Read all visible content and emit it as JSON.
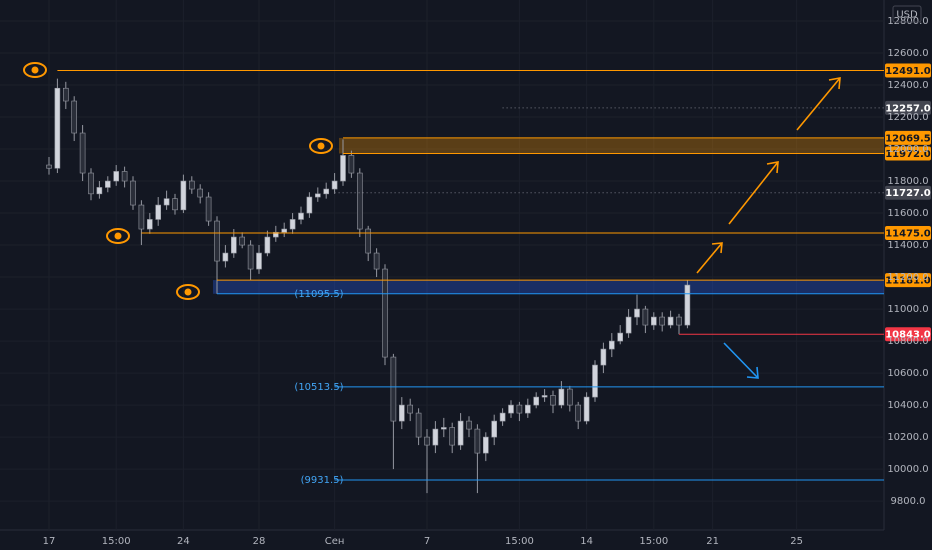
{
  "chart_data": {
    "type": "candlestick",
    "currency": "USD",
    "categories": [
      "17",
      null,
      null,
      null,
      null,
      null,
      null,
      null,
      "15:00",
      null,
      null,
      null,
      null,
      null,
      null,
      null,
      "24",
      null,
      null,
      null,
      null,
      null,
      null,
      null,
      null,
      "28",
      null,
      null,
      null,
      null,
      null,
      null,
      null,
      null,
      "Сен",
      null,
      null,
      null,
      null,
      null,
      null,
      null,
      null,
      null,
      null,
      "7",
      null,
      null,
      null,
      null,
      null,
      null,
      null,
      null,
      null,
      null,
      "15:00",
      null,
      null,
      null,
      null,
      null,
      null,
      null,
      "14",
      null,
      null,
      null,
      null,
      null,
      null,
      null,
      "15:00",
      null,
      null,
      null,
      null,
      null,
      null,
      "21",
      null,
      null,
      null,
      null,
      null,
      null,
      null,
      null,
      null,
      "25"
    ],
    "open": [
      11900,
      11880,
      12380,
      12300,
      12100,
      11850,
      11720,
      11760,
      11800,
      11860,
      11800,
      11650,
      11500,
      11560,
      11650,
      11690,
      11620,
      11800,
      11750,
      11700,
      11550,
      11300,
      11350,
      11450,
      11400,
      11250,
      11350,
      11450,
      11480,
      11500,
      11560,
      11600,
      11700,
      11720,
      11750,
      11800,
      11960,
      11850,
      11500,
      11350,
      11250,
      10700,
      10300,
      10400,
      10350,
      10200,
      10150,
      10250,
      10260,
      10150,
      10300,
      10250,
      10100,
      10200,
      10300,
      10350,
      10400,
      10350,
      10400,
      10450,
      10460,
      10400,
      10500,
      10400,
      10300,
      10450,
      10650,
      10750,
      10800,
      10850,
      10950,
      11000,
      10900,
      10950,
      10900,
      10950,
      10900,
      null,
      null,
      null,
      null,
      null,
      null,
      null,
      null,
      null,
      null,
      null,
      null,
      null
    ],
    "high": [
      11950,
      12440,
      12420,
      12330,
      12150,
      11880,
      11800,
      11830,
      11900,
      11890,
      11830,
      11680,
      11600,
      11700,
      11740,
      11720,
      11840,
      11830,
      11780,
      11730,
      11580,
      11400,
      11500,
      11480,
      11430,
      11400,
      11490,
      11520,
      11540,
      11600,
      11640,
      11730,
      11760,
      11790,
      11850,
      12060,
      11990,
      11880,
      11520,
      11380,
      11280,
      10720,
      10450,
      10440,
      10380,
      10250,
      10300,
      10320,
      10290,
      10350,
      10330,
      10280,
      10230,
      10340,
      10380,
      10430,
      10420,
      10440,
      10480,
      10500,
      10490,
      10550,
      10520,
      10420,
      10480,
      10680,
      10790,
      10850,
      10900,
      11000,
      11090,
      11020,
      10980,
      10980,
      10990,
      10970,
      11181,
      null,
      null,
      null,
      null,
      null,
      null,
      null,
      null,
      null,
      null,
      null,
      null,
      null
    ],
    "low": [
      11840,
      11850,
      12250,
      12050,
      11800,
      11680,
      11690,
      11730,
      11770,
      11760,
      11620,
      11400,
      11470,
      11520,
      11620,
      11590,
      11600,
      11720,
      11660,
      11520,
      11095,
      11260,
      11320,
      11380,
      11180,
      11220,
      11330,
      11420,
      11450,
      11470,
      11530,
      11570,
      11670,
      11690,
      11720,
      11770,
      11820,
      11450,
      11300,
      11200,
      10650,
      10000,
      10250,
      10300,
      10150,
      9850,
      10100,
      10200,
      10100,
      10120,
      10200,
      9850,
      10050,
      10150,
      10270,
      10320,
      10300,
      10320,
      10380,
      10420,
      10350,
      10380,
      10360,
      10250,
      10280,
      10420,
      10600,
      10700,
      10780,
      10820,
      10900,
      10850,
      10870,
      10860,
      10880,
      10843,
      10880,
      null,
      null,
      null,
      null,
      null,
      null,
      null,
      null,
      null,
      null,
      null,
      null,
      null
    ],
    "close": [
      11880,
      12380,
      12300,
      12100,
      11850,
      11720,
      11760,
      11800,
      11860,
      11800,
      11650,
      11500,
      11560,
      11650,
      11690,
      11620,
      11800,
      11750,
      11700,
      11550,
      11300,
      11350,
      11450,
      11400,
      11250,
      11350,
      11450,
      11480,
      11500,
      11560,
      11600,
      11700,
      11720,
      11750,
      11800,
      11960,
      11850,
      11500,
      11350,
      11250,
      10700,
      10300,
      10400,
      10350,
      10200,
      10150,
      10250,
      10260,
      10150,
      10300,
      10250,
      10100,
      10200,
      10300,
      10350,
      10400,
      10350,
      10400,
      10450,
      10460,
      10400,
      10500,
      10400,
      10300,
      10450,
      10650,
      10750,
      10800,
      10850,
      10950,
      11000,
      10900,
      10950,
      10900,
      10950,
      10900,
      11150,
      null,
      null,
      null,
      null,
      null,
      null,
      null,
      null,
      null,
      null,
      null,
      null,
      null
    ],
    "colors": {
      "up": "#d1d4dc",
      "down": "#2a2e39",
      "wick": "#9598a1"
    },
    "ylim": [
      9619.4,
      12931.3
    ],
    "yticks": [
      {
        "value": 9800,
        "label": "9800.0"
      },
      {
        "value": 10000,
        "label": "10000.0"
      },
      {
        "value": 10200,
        "label": "10200.0"
      },
      {
        "value": 10400,
        "label": "10400.0"
      },
      {
        "value": 10600,
        "label": "10600.0"
      },
      {
        "value": 10800,
        "label": "10800.0"
      },
      {
        "value": 11000,
        "label": "11000.0"
      },
      {
        "value": 11200,
        "label": "11200.0"
      },
      {
        "value": 11400,
        "label": "11400.0"
      },
      {
        "value": 11600,
        "label": "11600.0"
      },
      {
        "value": 11800,
        "label": "11800.0"
      },
      {
        "value": 12000,
        "label": "12000.0"
      },
      {
        "value": 12200,
        "label": "12200.0"
      },
      {
        "value": 12400,
        "label": "12400.0"
      },
      {
        "value": 12600,
        "label": "12600.0"
      },
      {
        "value": 12800,
        "label": "12800.0"
      }
    ],
    "grid": true,
    "levels": [
      {
        "value": 12491,
        "label": "12491.0",
        "color": "#ff9800",
        "style": "solid"
      },
      {
        "value": 12257,
        "label": "12257.0",
        "color": "#434651",
        "style": "dotted"
      },
      {
        "value": 12069.5,
        "label": "12069.5",
        "color": "#ff9800",
        "style": "solid"
      },
      {
        "value": 11972,
        "label": "11972.0",
        "color": "#ff9800",
        "style": "solid"
      },
      {
        "value": 11727,
        "label": "11727.0",
        "color": "#434651",
        "style": "dotted"
      },
      {
        "value": 11475,
        "label": "11475.0",
        "color": "#ff9800",
        "style": "solid"
      },
      {
        "value": 11181,
        "label": "11181.0",
        "color": "#ff9800",
        "style": "solid"
      },
      {
        "value": 10843,
        "label": "10843.0",
        "color": "#f23645",
        "style": "solid"
      }
    ],
    "zones": [
      {
        "top": 12069.5,
        "bottom": 11972,
        "color": "#ff9800"
      },
      {
        "top": 11181,
        "bottom": 11095.5,
        "color": "#2962ff"
      }
    ],
    "annotations": [
      {
        "value": 11095.5,
        "label": "(11095.5)"
      },
      {
        "value": 10513.5,
        "label": "(10513.5)"
      },
      {
        "value": 9931.5,
        "label": "(9931.5)"
      }
    ]
  }
}
